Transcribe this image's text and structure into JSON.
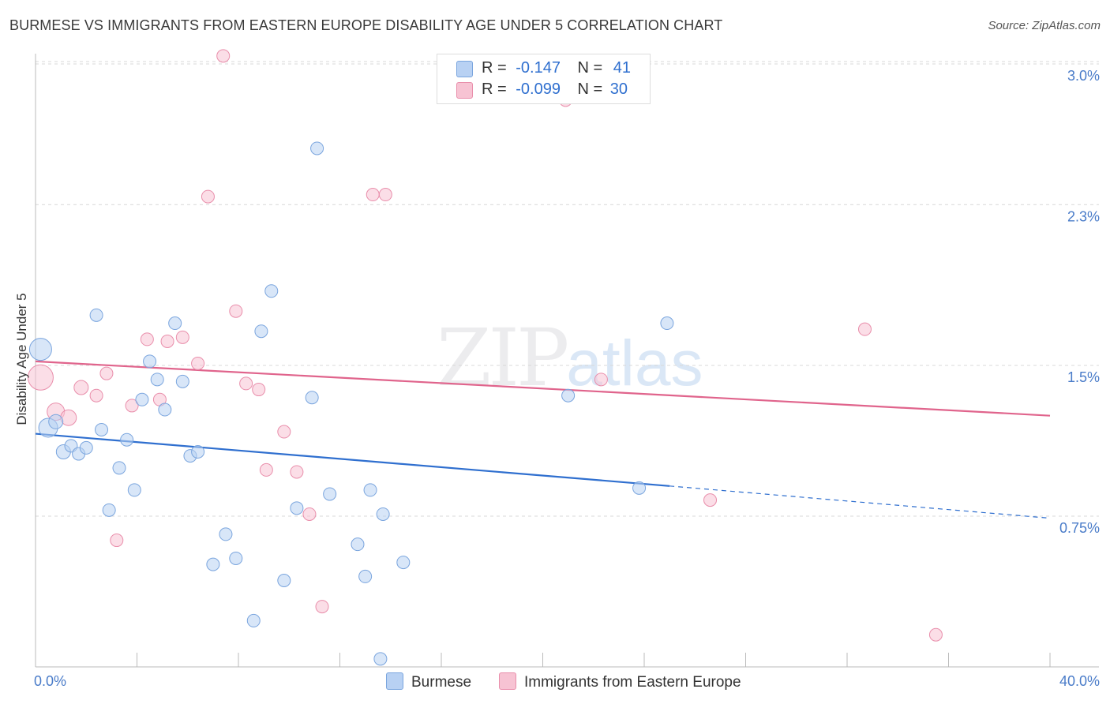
{
  "title": "BURMESE VS IMMIGRANTS FROM EASTERN EUROPE DISABILITY AGE UNDER 5 CORRELATION CHART",
  "source": "Source: ZipAtlas.com",
  "watermark": {
    "zip": "ZIP",
    "atlas": "atlas"
  },
  "legend": {
    "series1": {
      "r_label": "R =",
      "r_value": "-0.147",
      "n_label": "N =",
      "n_value": "41"
    },
    "series2": {
      "r_label": "R =",
      "r_value": "-0.099",
      "n_label": "N =",
      "n_value": "30"
    }
  },
  "bottom_legend": {
    "series1": "Burmese",
    "series2": "Immigrants from Eastern Europe"
  },
  "colors": {
    "burmese_fill": "#b8d1f3",
    "burmese_stroke": "#7aa5de",
    "burmese_line": "#2f6fcf",
    "eeurope_fill": "#f7c3d3",
    "eeurope_stroke": "#e98eab",
    "eeurope_line": "#e0648c",
    "tick": "#4a7cc9",
    "grid": "#d8d8d8"
  },
  "chart_data": {
    "type": "scatter",
    "title": "BURMESE VS IMMIGRANTS FROM EASTERN EUROPE DISABILITY AGE UNDER 5 CORRELATION CHART",
    "xlabel": "",
    "ylabel": "Disability Age Under 5",
    "xlim": [
      0,
      40
    ],
    "ylim": [
      0,
      3.1
    ],
    "x_tick_labels": [
      {
        "value": 0,
        "label": "0.0%"
      },
      {
        "value": 40,
        "label": "40.0%"
      }
    ],
    "y_ticks": [
      {
        "value": 0.75,
        "label": "0.75%"
      },
      {
        "value": 1.5,
        "label": "1.5%"
      },
      {
        "value": 2.3,
        "label": "2.3%"
      },
      {
        "value": 3.0,
        "label": "3.0%"
      }
    ],
    "series": [
      {
        "name": "Burmese",
        "R": -0.147,
        "N": 41,
        "trend": {
          "x0": 0.0,
          "y0": 1.16,
          "x1": 25.0,
          "y1": 0.9,
          "dash_to_x": 40.0,
          "dash_to_y": 0.74
        },
        "points": [
          {
            "x": 0.2,
            "y": 1.58,
            "s": 14
          },
          {
            "x": 0.5,
            "y": 1.19,
            "s": 12
          },
          {
            "x": 0.8,
            "y": 1.22,
            "s": 9
          },
          {
            "x": 1.1,
            "y": 1.07,
            "s": 9
          },
          {
            "x": 1.4,
            "y": 1.1,
            "s": 8
          },
          {
            "x": 1.7,
            "y": 1.06,
            "s": 8
          },
          {
            "x": 2.0,
            "y": 1.09,
            "s": 8
          },
          {
            "x": 2.4,
            "y": 1.75,
            "s": 8
          },
          {
            "x": 2.6,
            "y": 1.18,
            "s": 8
          },
          {
            "x": 2.9,
            "y": 0.78,
            "s": 8
          },
          {
            "x": 3.3,
            "y": 0.99,
            "s": 8
          },
          {
            "x": 3.6,
            "y": 1.13,
            "s": 8
          },
          {
            "x": 3.9,
            "y": 0.88,
            "s": 8
          },
          {
            "x": 4.2,
            "y": 1.33,
            "s": 8
          },
          {
            "x": 4.5,
            "y": 1.52,
            "s": 8
          },
          {
            "x": 4.8,
            "y": 1.43,
            "s": 8
          },
          {
            "x": 5.1,
            "y": 1.28,
            "s": 8
          },
          {
            "x": 5.5,
            "y": 1.71,
            "s": 8
          },
          {
            "x": 5.8,
            "y": 1.42,
            "s": 8
          },
          {
            "x": 6.1,
            "y": 1.05,
            "s": 8
          },
          {
            "x": 6.4,
            "y": 1.07,
            "s": 8
          },
          {
            "x": 7.0,
            "y": 0.51,
            "s": 8
          },
          {
            "x": 7.5,
            "y": 0.66,
            "s": 8
          },
          {
            "x": 7.9,
            "y": 0.54,
            "s": 8
          },
          {
            "x": 8.6,
            "y": 0.23,
            "s": 8
          },
          {
            "x": 8.9,
            "y": 1.67,
            "s": 8
          },
          {
            "x": 9.3,
            "y": 1.87,
            "s": 8
          },
          {
            "x": 9.8,
            "y": 0.43,
            "s": 8
          },
          {
            "x": 10.3,
            "y": 0.79,
            "s": 8
          },
          {
            "x": 10.9,
            "y": 1.34,
            "s": 8
          },
          {
            "x": 11.1,
            "y": 2.58,
            "s": 8
          },
          {
            "x": 11.6,
            "y": 0.86,
            "s": 8
          },
          {
            "x": 12.7,
            "y": 0.61,
            "s": 8
          },
          {
            "x": 13.0,
            "y": 0.45,
            "s": 8
          },
          {
            "x": 13.2,
            "y": 0.88,
            "s": 8
          },
          {
            "x": 13.6,
            "y": 0.04,
            "s": 8
          },
          {
            "x": 13.7,
            "y": 0.76,
            "s": 8
          },
          {
            "x": 14.5,
            "y": 0.52,
            "s": 8
          },
          {
            "x": 21.0,
            "y": 1.35,
            "s": 8
          },
          {
            "x": 23.8,
            "y": 0.89,
            "s": 8
          },
          {
            "x": 24.9,
            "y": 1.71,
            "s": 8
          }
        ]
      },
      {
        "name": "Immigrants from Eastern Europe",
        "R": -0.099,
        "N": 30,
        "trend": {
          "x0": 0.0,
          "y0": 1.52,
          "x1": 40.0,
          "y1": 1.25
        },
        "points": [
          {
            "x": 0.2,
            "y": 1.44,
            "s": 16
          },
          {
            "x": 0.8,
            "y": 1.27,
            "s": 11
          },
          {
            "x": 1.3,
            "y": 1.24,
            "s": 10
          },
          {
            "x": 1.8,
            "y": 1.39,
            "s": 9
          },
          {
            "x": 2.4,
            "y": 1.35,
            "s": 8
          },
          {
            "x": 2.8,
            "y": 1.46,
            "s": 8
          },
          {
            "x": 3.2,
            "y": 0.63,
            "s": 8
          },
          {
            "x": 3.8,
            "y": 1.3,
            "s": 8
          },
          {
            "x": 4.4,
            "y": 1.63,
            "s": 8
          },
          {
            "x": 4.9,
            "y": 1.33,
            "s": 8
          },
          {
            "x": 5.2,
            "y": 1.62,
            "s": 8
          },
          {
            "x": 5.8,
            "y": 1.64,
            "s": 8
          },
          {
            "x": 6.4,
            "y": 1.51,
            "s": 8
          },
          {
            "x": 6.8,
            "y": 2.34,
            "s": 8
          },
          {
            "x": 7.4,
            "y": 3.04,
            "s": 8
          },
          {
            "x": 7.9,
            "y": 1.77,
            "s": 8
          },
          {
            "x": 8.3,
            "y": 1.41,
            "s": 8
          },
          {
            "x": 8.8,
            "y": 1.38,
            "s": 8
          },
          {
            "x": 9.1,
            "y": 0.98,
            "s": 8
          },
          {
            "x": 9.8,
            "y": 1.17,
            "s": 8
          },
          {
            "x": 10.3,
            "y": 0.97,
            "s": 8
          },
          {
            "x": 10.8,
            "y": 0.76,
            "s": 8
          },
          {
            "x": 11.3,
            "y": 0.3,
            "s": 8
          },
          {
            "x": 13.3,
            "y": 2.35,
            "s": 8
          },
          {
            "x": 13.8,
            "y": 2.35,
            "s": 8
          },
          {
            "x": 20.9,
            "y": 2.82,
            "s": 8
          },
          {
            "x": 22.3,
            "y": 1.43,
            "s": 8
          },
          {
            "x": 26.6,
            "y": 0.83,
            "s": 8
          },
          {
            "x": 32.7,
            "y": 1.68,
            "s": 8
          },
          {
            "x": 35.5,
            "y": 0.16,
            "s": 8
          }
        ]
      }
    ]
  }
}
